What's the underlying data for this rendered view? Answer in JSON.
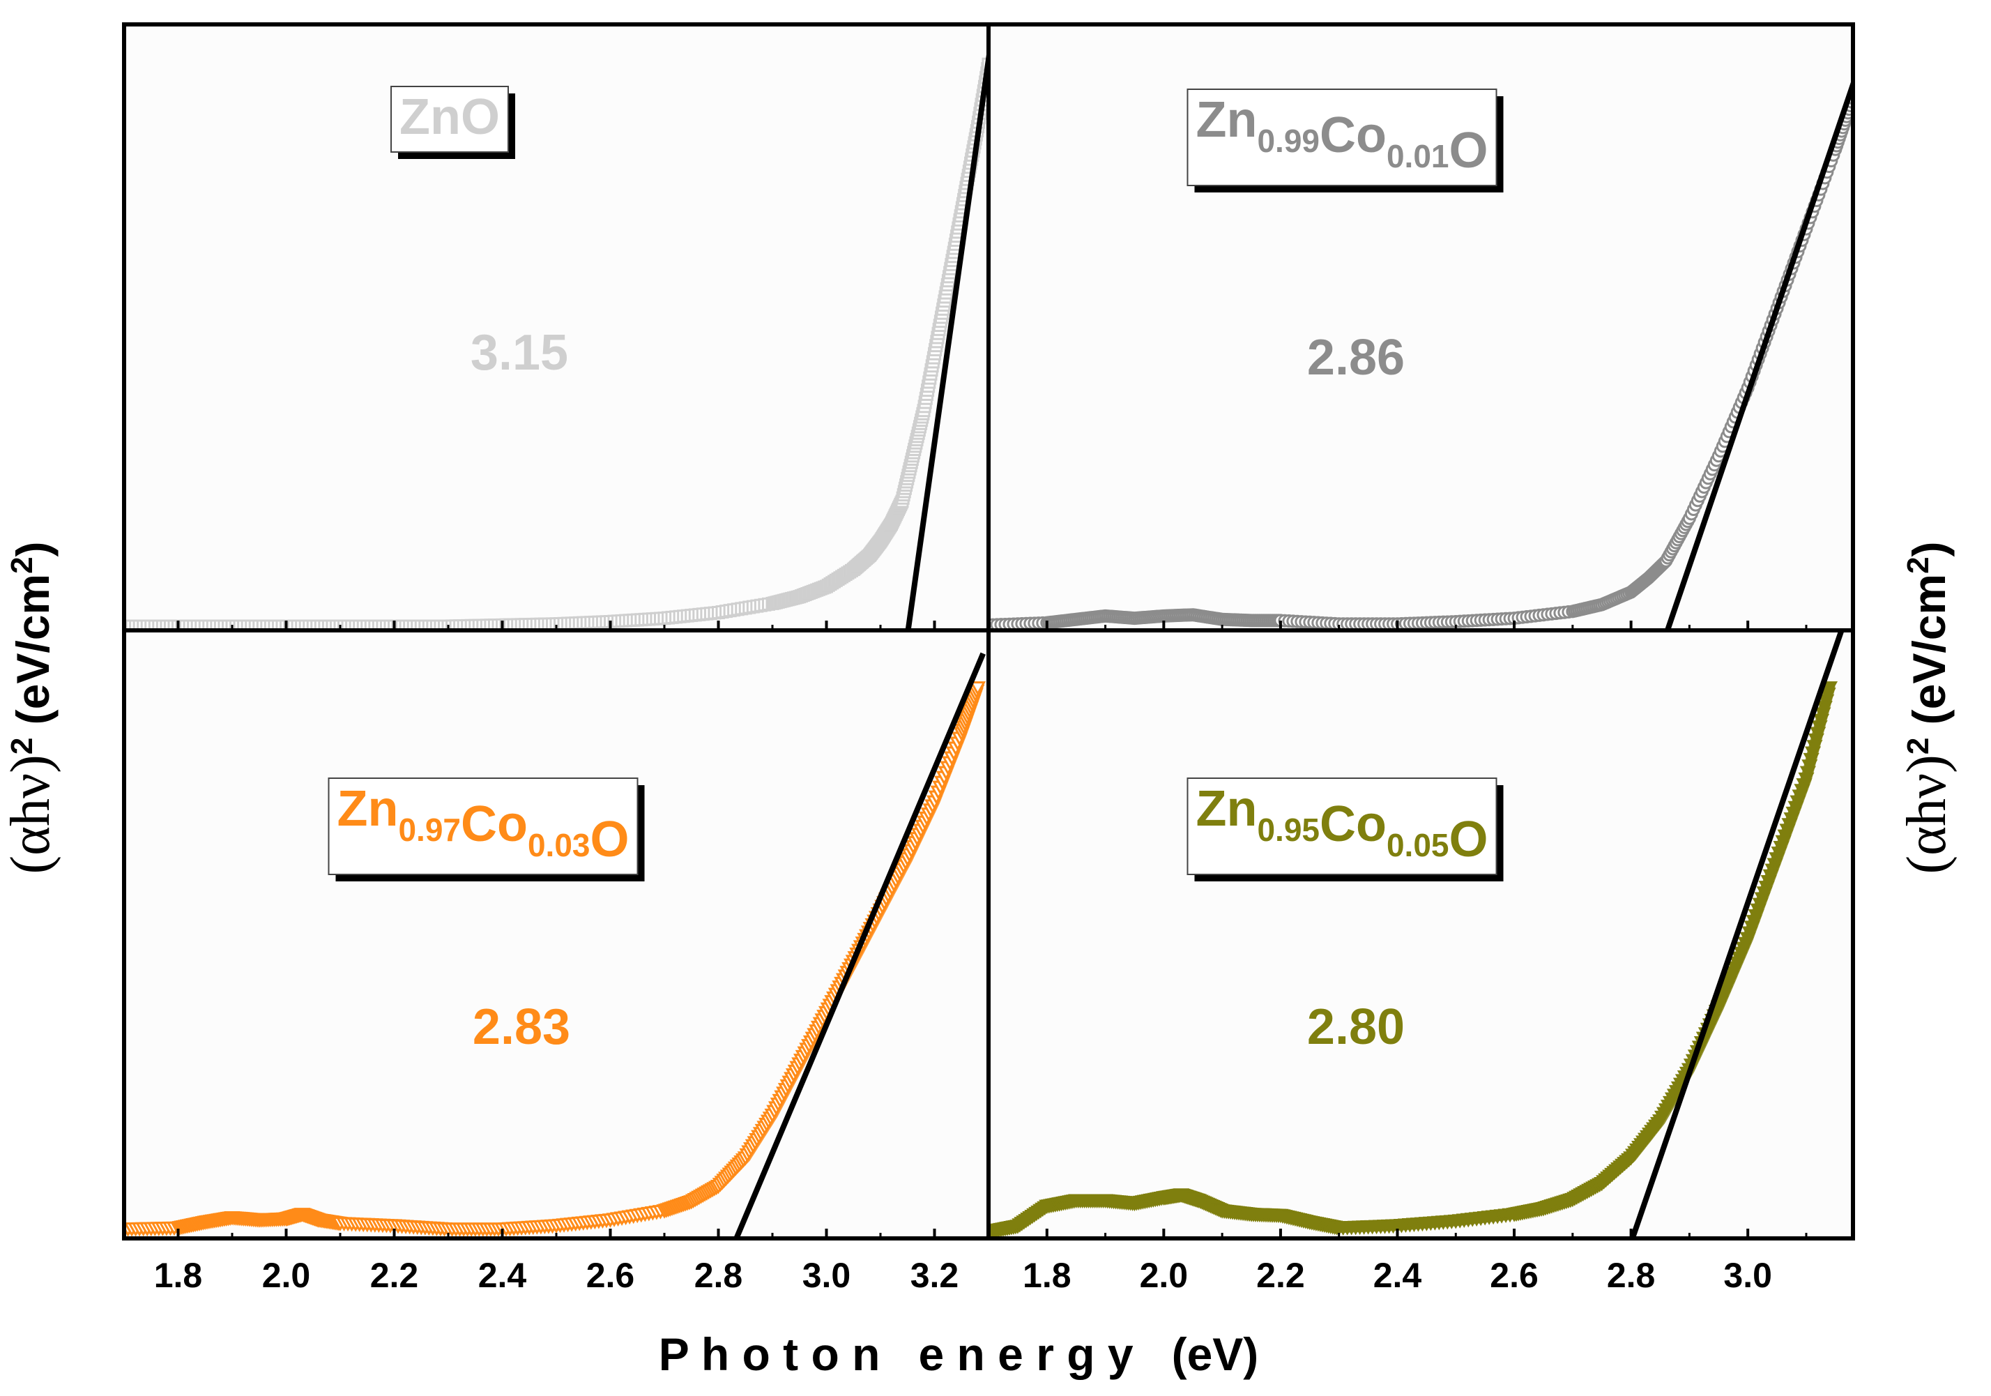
{
  "figure": {
    "xlabel": "P h o t o n   e n e r g y   (eV)",
    "ylabel_left": {
      "open": "(",
      "alpha": "α",
      "hv": "hν",
      "close": ")",
      "exp": "2",
      "units_open": " (eV/cm",
      "units_exp": "2",
      "units_close": ")"
    },
    "ylabel_right": {
      "open": "(",
      "alpha": "α",
      "hv": "hν",
      "close": ")",
      "exp": "2",
      "units_open": " (eV/cm",
      "units_exp": "2",
      "units_close": ")"
    }
  },
  "chart_data": [
    {
      "id": "zno",
      "type": "scatter",
      "position": "top-left",
      "sample": {
        "parts": [
          [
            "ZnO",
            ""
          ]
        ]
      },
      "band_gap": "3.15",
      "color": "#cfcfcf",
      "marker": "square",
      "xlim": [
        1.7,
        3.3
      ],
      "ticks": [
        "1.8",
        "2.0",
        "2.2",
        "2.4",
        "2.6",
        "2.8",
        "3.0",
        "3.2"
      ],
      "x": [
        1.7,
        1.8,
        1.9,
        2.0,
        2.1,
        2.2,
        2.3,
        2.4,
        2.5,
        2.6,
        2.7,
        2.8,
        2.9,
        2.95,
        3.0,
        3.05,
        3.08,
        3.1,
        3.12,
        3.14,
        3.16,
        3.18,
        3.2,
        3.22,
        3.24,
        3.26,
        3.28,
        3.3
      ],
      "y": [
        0.0,
        0.0,
        0.0,
        0.0,
        0.0,
        0.0,
        0.0,
        0.002,
        0.004,
        0.008,
        0.014,
        0.024,
        0.04,
        0.052,
        0.07,
        0.1,
        0.125,
        0.15,
        0.18,
        0.22,
        0.3,
        0.38,
        0.48,
        0.58,
        0.68,
        0.78,
        0.88,
        0.99
      ],
      "fit": {
        "x": [
          3.15,
          3.3
        ],
        "y": [
          0.0,
          1.0
        ]
      }
    },
    {
      "id": "zn099",
      "type": "scatter",
      "position": "top-right",
      "sample": {
        "parts": [
          [
            "Zn",
            "0.99"
          ],
          [
            "Co",
            "0.01"
          ],
          [
            "O",
            ""
          ]
        ]
      },
      "band_gap": "2.86",
      "color": "#8c8c8c",
      "marker": "circle",
      "xlim": [
        1.7,
        3.18
      ],
      "ticks": [
        "1.8",
        "2.0",
        "2.2",
        "2.4",
        "2.6",
        "2.8",
        "3.0"
      ],
      "x": [
        1.7,
        1.8,
        1.85,
        1.9,
        1.95,
        2.0,
        2.05,
        2.1,
        2.15,
        2.2,
        2.3,
        2.4,
        2.5,
        2.6,
        2.7,
        2.75,
        2.8,
        2.83,
        2.86,
        2.9,
        2.95,
        3.0,
        3.05,
        3.1,
        3.15,
        3.18
      ],
      "y": [
        0.002,
        0.006,
        0.012,
        0.018,
        0.014,
        0.018,
        0.02,
        0.012,
        0.01,
        0.01,
        0.004,
        0.004,
        0.008,
        0.014,
        0.026,
        0.038,
        0.06,
        0.085,
        0.115,
        0.19,
        0.3,
        0.42,
        0.56,
        0.7,
        0.84,
        0.93
      ],
      "fit": {
        "x": [
          2.86,
          3.18
        ],
        "y": [
          0.0,
          0.955
        ]
      }
    },
    {
      "id": "zn097",
      "type": "scatter",
      "position": "bottom-left",
      "sample": {
        "parts": [
          [
            "Zn",
            "0.97"
          ],
          [
            "Co",
            "0.03"
          ],
          [
            "O",
            ""
          ]
        ]
      },
      "band_gap": "2.83",
      "color": "#ff8b18",
      "marker": "triangle-down",
      "xlim": [
        1.7,
        3.3
      ],
      "ticks": [
        "1.8",
        "2.0",
        "2.2",
        "2.4",
        "2.6",
        "2.8",
        "3.0",
        "3.2"
      ],
      "x": [
        1.7,
        1.8,
        1.85,
        1.9,
        1.95,
        2.0,
        2.03,
        2.06,
        2.1,
        2.2,
        2.3,
        2.4,
        2.5,
        2.6,
        2.7,
        2.75,
        2.8,
        2.85,
        2.9,
        2.95,
        3.0,
        3.05,
        3.1,
        3.15,
        3.2,
        3.25,
        3.28
      ],
      "y": [
        0.01,
        0.012,
        0.022,
        0.03,
        0.026,
        0.028,
        0.036,
        0.026,
        0.02,
        0.016,
        0.01,
        0.01,
        0.016,
        0.026,
        0.042,
        0.058,
        0.085,
        0.135,
        0.21,
        0.3,
        0.39,
        0.48,
        0.57,
        0.66,
        0.76,
        0.88,
        0.96
      ],
      "fit": {
        "x": [
          2.83,
          3.27
        ],
        "y": [
          0.0,
          0.975
        ]
      }
    },
    {
      "id": "zn095",
      "type": "scatter",
      "position": "bottom-right",
      "sample": {
        "parts": [
          [
            "Zn",
            "0.95"
          ],
          [
            "Co",
            "0.05"
          ],
          [
            "O",
            ""
          ]
        ]
      },
      "band_gap": "2.80",
      "color": "#7f7f0e",
      "marker": "triangle-down",
      "xlim": [
        1.7,
        3.18
      ],
      "ticks": [
        "1.8",
        "2.0",
        "2.2",
        "2.4",
        "2.6",
        "2.8",
        "3.0"
      ],
      "x": [
        1.7,
        1.75,
        1.8,
        1.85,
        1.9,
        1.95,
        2.0,
        2.03,
        2.06,
        2.1,
        2.15,
        2.2,
        2.25,
        2.3,
        2.4,
        2.5,
        2.6,
        2.65,
        2.7,
        2.75,
        2.8,
        2.85,
        2.9,
        2.95,
        3.0,
        3.05,
        3.1,
        3.14
      ],
      "y": [
        0.005,
        0.015,
        0.05,
        0.06,
        0.06,
        0.055,
        0.065,
        0.07,
        0.06,
        0.042,
        0.036,
        0.034,
        0.022,
        0.012,
        0.016,
        0.024,
        0.036,
        0.046,
        0.062,
        0.09,
        0.135,
        0.2,
        0.29,
        0.4,
        0.52,
        0.66,
        0.8,
        0.96
      ],
      "fit": {
        "x": [
          2.8,
          3.14
        ],
        "y": [
          0.0,
          1.0
        ]
      }
    }
  ]
}
